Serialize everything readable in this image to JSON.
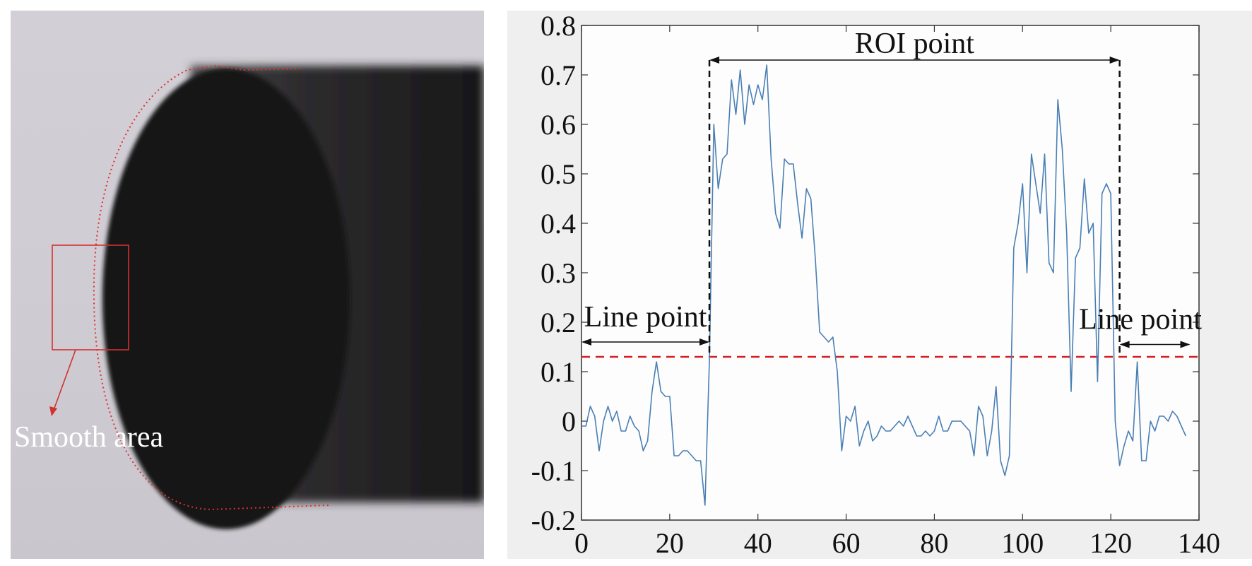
{
  "photo_panel": {
    "annotation_label": "Smooth area",
    "edge_color": "#e03030"
  },
  "chart_data": {
    "type": "line",
    "xlim": [
      0,
      140
    ],
    "ylim": [
      -0.2,
      0.8
    ],
    "xticks": [
      "0",
      "20",
      "40",
      "60",
      "80",
      "100",
      "120",
      "140"
    ],
    "yticks": [
      "-0.2",
      "-0.1",
      "0",
      "0.1",
      "0.2",
      "0.3",
      "0.4",
      "0.5",
      "0.6",
      "0.7",
      "0.8"
    ],
    "grid": false,
    "series": [
      {
        "color": "#4a7fb5",
        "x": [
          0,
          1,
          2,
          3,
          4,
          5,
          6,
          7,
          8,
          9,
          10,
          11,
          12,
          13,
          14,
          15,
          16,
          17,
          18,
          19,
          20,
          21,
          22,
          23,
          24,
          25,
          26,
          27,
          28,
          29,
          30,
          31,
          32,
          33,
          34,
          35,
          36,
          37,
          38,
          39,
          40,
          41,
          42,
          43,
          44,
          45,
          46,
          47,
          48,
          49,
          50,
          51,
          52,
          53,
          54,
          55,
          56,
          57,
          58,
          59,
          60,
          61,
          62,
          63,
          64,
          65,
          66,
          67,
          68,
          69,
          70,
          71,
          72,
          73,
          74,
          75,
          76,
          77,
          78,
          79,
          80,
          81,
          82,
          83,
          84,
          85,
          86,
          87,
          88,
          89,
          90,
          91,
          92,
          93,
          94,
          95,
          96,
          97,
          98,
          99,
          100,
          101,
          102,
          103,
          104,
          105,
          106,
          107,
          108,
          109,
          110,
          111,
          112,
          113,
          114,
          115,
          116,
          117,
          118,
          119,
          120,
          121,
          122,
          123,
          124,
          125,
          126,
          127,
          128,
          129,
          130,
          131,
          132,
          133,
          134,
          135,
          136,
          137
        ],
        "y": [
          -0.01,
          -0.01,
          0.03,
          0.01,
          -0.06,
          0.0,
          0.03,
          0.0,
          0.02,
          -0.02,
          -0.02,
          0.01,
          -0.01,
          -0.02,
          -0.06,
          -0.04,
          0.06,
          0.12,
          0.06,
          0.05,
          0.05,
          -0.07,
          -0.07,
          -0.06,
          -0.06,
          -0.07,
          -0.08,
          -0.08,
          -0.17,
          0.12,
          0.6,
          0.47,
          0.53,
          0.54,
          0.69,
          0.62,
          0.71,
          0.6,
          0.68,
          0.64,
          0.68,
          0.65,
          0.72,
          0.53,
          0.42,
          0.39,
          0.53,
          0.52,
          0.52,
          0.44,
          0.37,
          0.47,
          0.45,
          0.33,
          0.18,
          0.17,
          0.16,
          0.17,
          0.1,
          -0.06,
          0.01,
          0.0,
          0.03,
          -0.05,
          -0.02,
          0.0,
          -0.04,
          -0.03,
          -0.01,
          -0.02,
          -0.02,
          -0.01,
          0.0,
          -0.01,
          0.01,
          -0.01,
          -0.03,
          -0.03,
          -0.02,
          -0.03,
          -0.02,
          0.01,
          -0.02,
          -0.02,
          0.0,
          0.0,
          0.0,
          -0.01,
          -0.02,
          -0.07,
          0.03,
          0.01,
          -0.07,
          -0.02,
          0.07,
          -0.08,
          -0.11,
          -0.07,
          0.35,
          0.4,
          0.48,
          0.3,
          0.54,
          0.48,
          0.42,
          0.54,
          0.32,
          0.3,
          0.65,
          0.55,
          0.38,
          0.06,
          0.33,
          0.35,
          0.49,
          0.38,
          0.4,
          0.08,
          0.46,
          0.48,
          0.46,
          0.0,
          -0.09,
          -0.05,
          -0.02,
          -0.04,
          0.12,
          -0.08,
          -0.08,
          0.0,
          -0.02,
          0.01,
          0.01,
          0.0,
          0.02,
          0.01,
          -0.01,
          -0.03
        ]
      }
    ],
    "threshold": {
      "y": 0.13,
      "color": "#d42020"
    },
    "roi_bounds": [
      29,
      122
    ],
    "annotations": {
      "roi_label": "ROI point",
      "line_left_label": "Line point",
      "line_right_label": "Line point"
    }
  }
}
